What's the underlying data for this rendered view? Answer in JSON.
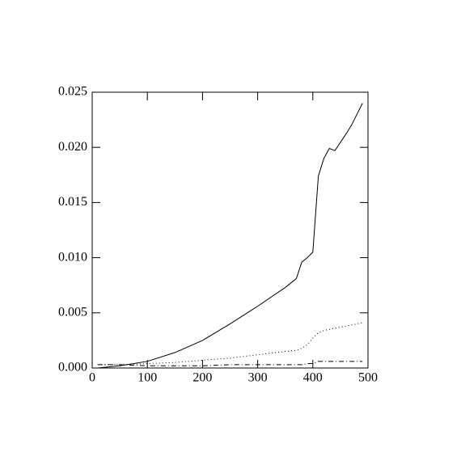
{
  "chart_data": {
    "type": "line",
    "x": [
      10,
      50,
      100,
      150,
      200,
      250,
      300,
      350,
      370,
      380,
      390,
      400,
      410,
      420,
      430,
      440,
      460,
      470,
      490
    ],
    "series": [
      {
        "color": "#000000",
        "dash": "none",
        "values": [
          0.0,
          0.0002,
          0.0006,
          0.0014,
          0.0025,
          0.004,
          0.0056,
          0.0073,
          0.0081,
          0.0096,
          0.01,
          0.0105,
          0.0174,
          0.019,
          0.0199,
          0.0197,
          0.0212,
          0.022,
          0.024
        ]
      },
      {
        "color": "#000000",
        "dash": "1 3",
        "values": [
          0.0003,
          0.0003,
          0.0004,
          0.0005,
          0.0007,
          0.0009,
          0.0012,
          0.0015,
          0.0016,
          0.0018,
          0.0021,
          0.0027,
          0.0032,
          0.0034,
          0.0035,
          0.0036,
          0.0038,
          0.0039,
          0.0041
        ]
      },
      {
        "color": "#000000",
        "dash": "6 3 1 3",
        "values": [
          0.0003,
          0.0003,
          0.0002,
          0.0002,
          0.0002,
          0.0003,
          0.0003,
          0.0003,
          0.0003,
          0.0003,
          0.0004,
          0.0004,
          0.0006,
          0.0006,
          0.0006,
          0.0006,
          0.0006,
          0.0006,
          0.0006
        ]
      }
    ],
    "xlim": [
      0,
      500
    ],
    "xticks": [
      0,
      100,
      200,
      300,
      400,
      500
    ],
    "ylim": [
      0,
      0.025
    ],
    "yticks": [
      {
        "value": 0,
        "label": "0.000"
      },
      {
        "value": 0.005,
        "label": "0.005"
      },
      {
        "value": 0.01,
        "label": "0.010"
      },
      {
        "value": 0.015,
        "label": "0.015"
      },
      {
        "value": 0.02,
        "label": "0.020"
      },
      {
        "value": 0.025,
        "label": "0.025"
      }
    ],
    "grid": false
  }
}
